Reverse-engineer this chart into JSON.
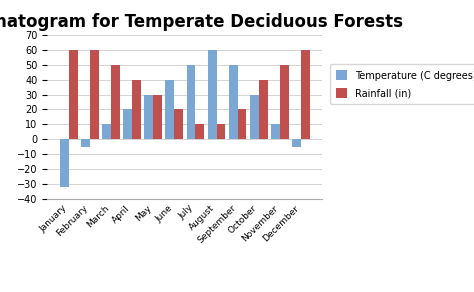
{
  "title": "Climatogram for Temperate Deciduous Forests",
  "months": [
    "January",
    "February",
    "March",
    "April",
    "May",
    "June",
    "July",
    "August",
    "September",
    "October",
    "November",
    "December"
  ],
  "temperature": [
    -32,
    -5,
    10,
    20,
    30,
    40,
    50,
    60,
    50,
    30,
    10,
    -5
  ],
  "rainfall": [
    60,
    60,
    50,
    40,
    30,
    20,
    10,
    10,
    20,
    40,
    50,
    60
  ],
  "temp_color": "#7ba7d4",
  "rain_color": "#c0504d",
  "ylim": [
    -40,
    70
  ],
  "yticks": [
    -40,
    -30,
    -20,
    -10,
    0,
    10,
    20,
    30,
    40,
    50,
    60,
    70
  ],
  "legend_temp": "Temperature (C degrees)",
  "legend_rain": "Rainfall (in)",
  "bar_width": 0.42,
  "title_fontsize": 12,
  "bg_color": "#ffffff",
  "fig_bg_color": "#ffffff"
}
